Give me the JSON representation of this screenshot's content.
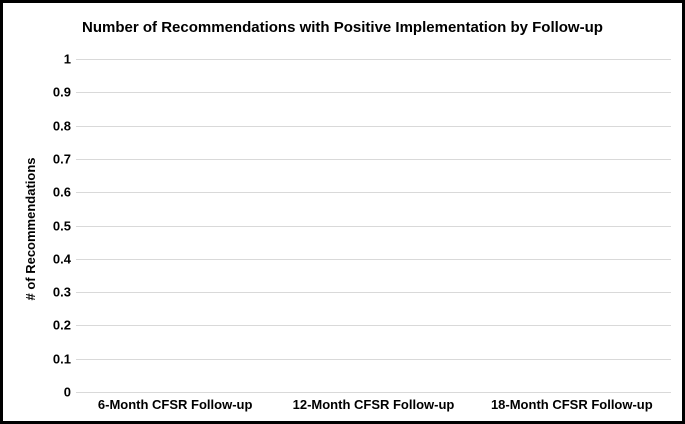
{
  "chart_data": {
    "type": "bar",
    "title": "Number of Recommendations with Positive Implementation by Follow-up",
    "ylabel": "# of Recommendations",
    "xlabel": "",
    "categories": [
      "6-Month CFSR Follow-up",
      "12-Month CFSR Follow-up",
      "18-Month CFSR Follow-up"
    ],
    "values": [
      0,
      0,
      0
    ],
    "ylim": [
      0,
      1
    ],
    "yticks": [
      0,
      0.1,
      0.2,
      0.3,
      0.4,
      0.5,
      0.6,
      0.7,
      0.8,
      0.9,
      1
    ],
    "ytick_labels": [
      "0",
      "0.1",
      "0.2",
      "0.3",
      "0.4",
      "0.5",
      "0.6",
      "0.7",
      "0.8",
      "0.9",
      "1"
    ],
    "grid": true,
    "legend": false,
    "colors": {
      "text": "#000000",
      "gridline": "#d9d9d9",
      "frame_border": "#000000",
      "background": "#ffffff"
    }
  }
}
